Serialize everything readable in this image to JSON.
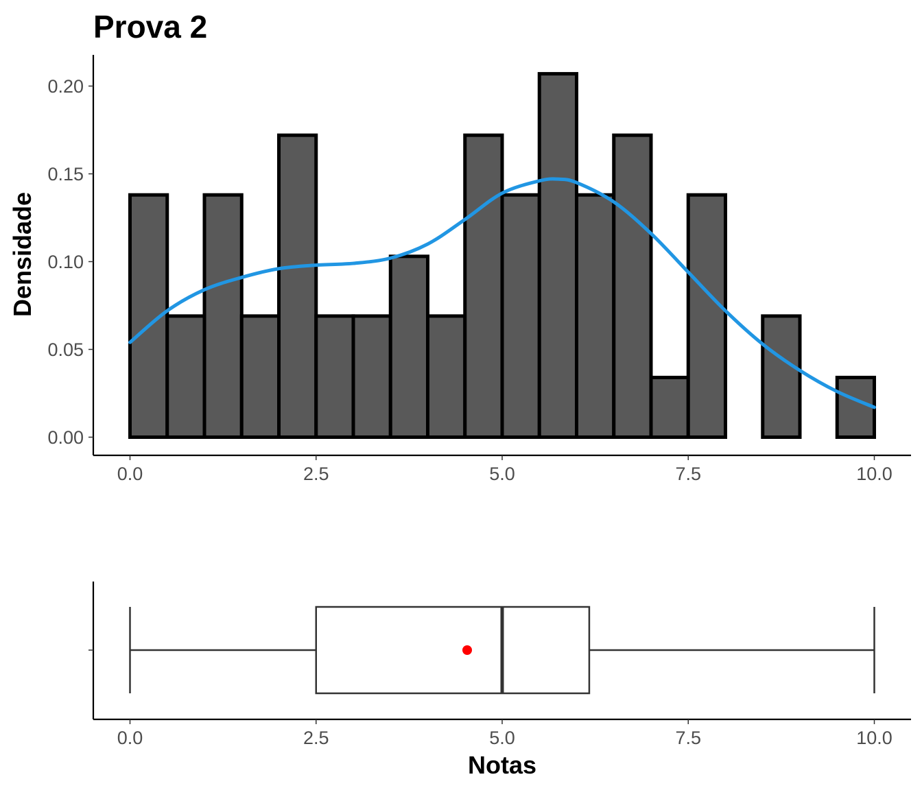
{
  "title": "Prova 2",
  "colors": {
    "bar_fill": "#595959",
    "bar_stroke": "#000000",
    "density": "#2196e3",
    "mean_point": "#ff0000"
  },
  "chart_data": [
    {
      "type": "bar",
      "subtype": "histogram",
      "ylabel": "Densidade",
      "xlabel": "",
      "xlim": [
        -0.25,
        10.25
      ],
      "ylim": [
        -0.01,
        0.218
      ],
      "x_ticks": [
        0.0,
        2.5,
        5.0,
        7.5,
        10.0
      ],
      "x_tick_labels": [
        "0.0",
        "2.5",
        "5.0",
        "7.5",
        "10.0"
      ],
      "y_ticks": [
        0.0,
        0.05,
        0.1,
        0.15,
        0.2
      ],
      "y_tick_labels": [
        "0.00",
        "0.05",
        "0.10",
        "0.15",
        "0.20"
      ],
      "grid": false,
      "bins": [
        {
          "x0": 0.0,
          "x1": 0.5,
          "value": 0.138
        },
        {
          "x0": 0.5,
          "x1": 1.0,
          "value": 0.069
        },
        {
          "x0": 1.0,
          "x1": 1.5,
          "value": 0.138
        },
        {
          "x0": 1.5,
          "x1": 2.0,
          "value": 0.069
        },
        {
          "x0": 2.0,
          "x1": 2.5,
          "value": 0.172
        },
        {
          "x0": 2.5,
          "x1": 3.0,
          "value": 0.069
        },
        {
          "x0": 3.0,
          "x1": 3.5,
          "value": 0.069
        },
        {
          "x0": 3.5,
          "x1": 4.0,
          "value": 0.103
        },
        {
          "x0": 4.0,
          "x1": 4.5,
          "value": 0.069
        },
        {
          "x0": 4.5,
          "x1": 5.0,
          "value": 0.172
        },
        {
          "x0": 5.0,
          "x1": 5.5,
          "value": 0.138
        },
        {
          "x0": 5.5,
          "x1": 6.0,
          "value": 0.207
        },
        {
          "x0": 6.0,
          "x1": 6.5,
          "value": 0.138
        },
        {
          "x0": 6.5,
          "x1": 7.0,
          "value": 0.172
        },
        {
          "x0": 7.0,
          "x1": 7.5,
          "value": 0.034
        },
        {
          "x0": 7.5,
          "x1": 8.0,
          "value": 0.138
        },
        {
          "x0": 8.0,
          "x1": 8.5,
          "value": 0.0
        },
        {
          "x0": 8.5,
          "x1": 9.0,
          "value": 0.069
        },
        {
          "x0": 9.0,
          "x1": 9.5,
          "value": 0.0
        },
        {
          "x0": 9.5,
          "x1": 10.0,
          "value": 0.034
        }
      ],
      "density_curve": {
        "x": [
          0.0,
          0.5,
          1.0,
          1.5,
          2.0,
          2.5,
          3.0,
          3.5,
          4.0,
          4.5,
          5.0,
          5.5,
          5.75,
          6.0,
          6.5,
          7.0,
          7.5,
          8.0,
          8.5,
          9.0,
          9.5,
          10.0
        ],
        "y": [
          0.054,
          0.072,
          0.084,
          0.091,
          0.096,
          0.098,
          0.099,
          0.102,
          0.11,
          0.124,
          0.139,
          0.146,
          0.147,
          0.145,
          0.134,
          0.116,
          0.094,
          0.072,
          0.053,
          0.038,
          0.026,
          0.017
        ]
      }
    },
    {
      "type": "boxplot",
      "xlabel": "Notas",
      "ylabel": "",
      "xlim": [
        -0.25,
        10.25
      ],
      "x_ticks": [
        0.0,
        2.5,
        5.0,
        7.5,
        10.0
      ],
      "x_tick_labels": [
        "0.0",
        "2.5",
        "5.0",
        "7.5",
        "10.0"
      ],
      "min": 0.0,
      "q1": 2.5,
      "median": 5.0,
      "q3": 6.17,
      "max": 10.0,
      "mean": 4.53
    }
  ]
}
